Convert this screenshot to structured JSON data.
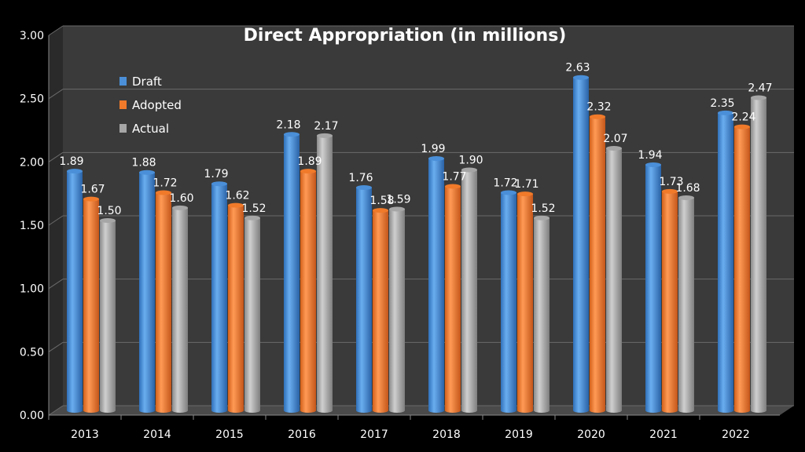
{
  "chart_data": {
    "type": "bar",
    "title": "Direct Appropriation (in millions)",
    "xlabel": "",
    "ylabel": "",
    "ylim": [
      0,
      3
    ],
    "yticks": [
      "0.00",
      "0.50",
      "1.00",
      "1.50",
      "2.00",
      "2.50",
      "3.00"
    ],
    "grid": true,
    "legend_position": "top-left",
    "categories": [
      "2013",
      "2014",
      "2015",
      "2016",
      "2017",
      "2018",
      "2019",
      "2020",
      "2021",
      "2022"
    ],
    "series": [
      {
        "name": "Draft",
        "color": "#4a8fd8",
        "values": [
          1.89,
          1.88,
          1.79,
          2.18,
          1.76,
          1.99,
          1.72,
          2.63,
          1.94,
          2.35
        ],
        "labels": [
          "1.89",
          "1.88",
          "1.79",
          "2.18",
          "1.76",
          "1.99",
          "1.72",
          "2.63",
          "1.94",
          "2.35"
        ]
      },
      {
        "name": "Adopted",
        "color": "#f07a2a",
        "values": [
          1.67,
          1.72,
          1.62,
          1.89,
          1.58,
          1.77,
          1.71,
          2.32,
          1.73,
          2.24
        ],
        "labels": [
          "1.67",
          "1.72",
          "1.62",
          "1.89",
          "1.58",
          "1.77",
          "1.71",
          "2.32",
          "1.73",
          "2.24"
        ]
      },
      {
        "name": "Actual",
        "color": "#a6a6a6",
        "values": [
          1.5,
          1.6,
          1.52,
          2.17,
          1.59,
          1.9,
          1.52,
          2.07,
          1.68,
          2.47
        ],
        "labels": [
          "1.50",
          "1.60",
          "1.52",
          "2.17",
          "1.59",
          "1.90",
          "1.52",
          "2.07",
          "1.68",
          "2.47"
        ]
      }
    ]
  }
}
